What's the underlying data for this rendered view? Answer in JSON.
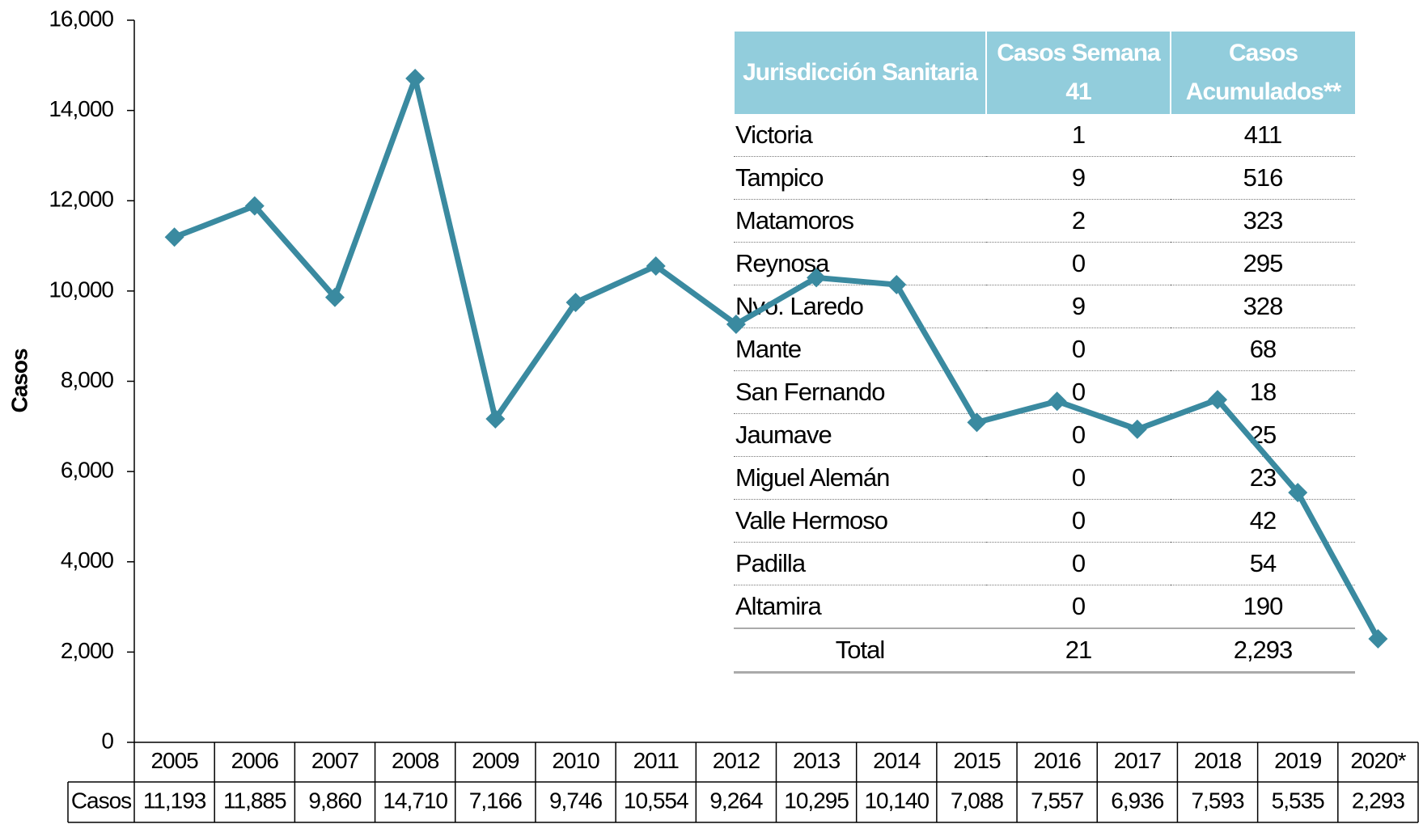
{
  "chart_data": {
    "type": "line",
    "y_label": "Casos",
    "categories": [
      "2005",
      "2006",
      "2007",
      "2008",
      "2009",
      "2010",
      "2011",
      "2012",
      "2013",
      "2014",
      "2015",
      "2016",
      "2017",
      "2018",
      "2019",
      "2020*"
    ],
    "series": [
      {
        "name": "Casos",
        "color": "#3a8aa0",
        "values": [
          11193,
          11885,
          9860,
          14710,
          7166,
          9746,
          10554,
          9264,
          10295,
          10140,
          7088,
          7557,
          6936,
          7593,
          5535,
          2293
        ],
        "value_labels": [
          "11,193",
          "11,885",
          "9,860",
          "14,710",
          "7,166",
          "9,746",
          "10,554",
          "9,264",
          "10,295",
          "10,140",
          "7,088",
          "7,557",
          "6,936",
          "7,593",
          "5,535",
          "2,293"
        ]
      }
    ],
    "ylim": [
      0,
      16000
    ],
    "yticks": [
      0,
      {
        "value": 2000,
        "label": "2,000"
      },
      {
        "value": 4000,
        "label": "4,000"
      },
      {
        "value": 6000,
        "label": "6,000"
      },
      {
        "value": 8000,
        "label": "8,000"
      },
      {
        "value": 10000,
        "label": "10,000"
      },
      {
        "value": 12000,
        "label": "12,000"
      },
      {
        "value": 14000,
        "label": "14,000"
      },
      {
        "value": 16000,
        "label": "16,000"
      }
    ]
  },
  "table": {
    "headers": [
      "Jurisdicción Sanitaria",
      "Casos Semana 41",
      "Casos Acumulados**"
    ],
    "rows": [
      [
        "Victoria",
        "1",
        "411"
      ],
      [
        "Tampico",
        "9",
        "516"
      ],
      [
        "Matamoros",
        "2",
        "323"
      ],
      [
        "Reynosa",
        "0",
        "295"
      ],
      [
        "Nvo. Laredo",
        "9",
        "328"
      ],
      [
        "Mante",
        "0",
        "68"
      ],
      [
        "San Fernando",
        "0",
        "18"
      ],
      [
        "Jaumave",
        "0",
        "25"
      ],
      [
        "Miguel Alemán",
        "0",
        "23"
      ],
      [
        "Valle Hermoso",
        "0",
        "42"
      ],
      [
        "Padilla",
        "0",
        "54"
      ],
      [
        "Altamira",
        "0",
        "190"
      ]
    ],
    "total": [
      "Total",
      "21",
      "2,293"
    ]
  }
}
